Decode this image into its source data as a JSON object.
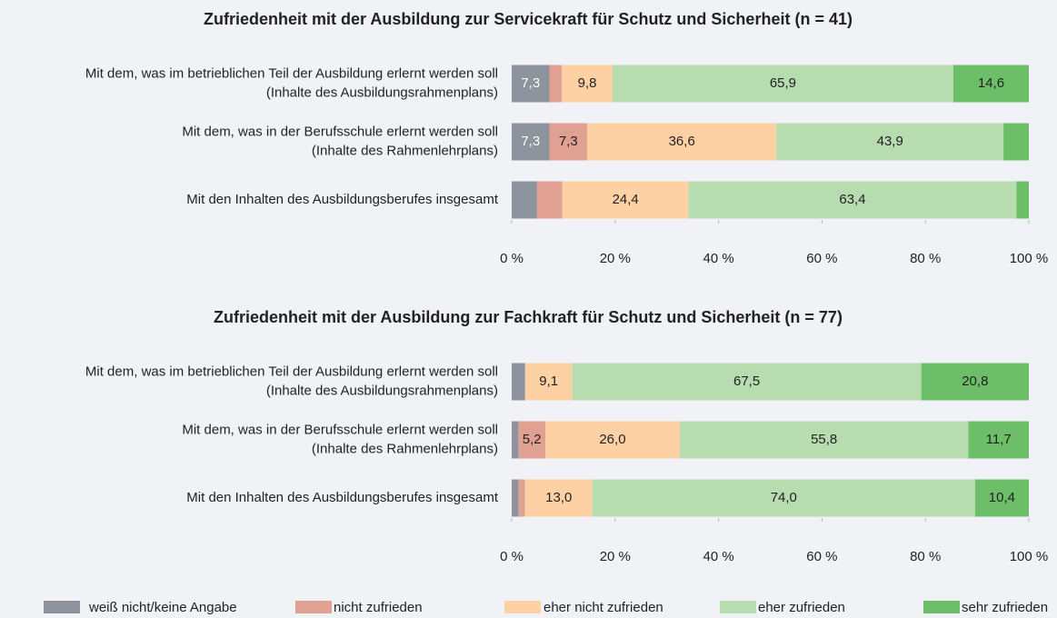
{
  "chart_data": [
    {
      "type": "stacked-bar-horizontal",
      "title": "Zufriedenheit mit der Ausbildung zur Servicekraft für Schutz und Sicherheit (n = 41)",
      "categories": [
        [
          "Mit dem, was im betrieblichen Teil der Ausbildung erlernt werden soll",
          "(Inhalte des Ausbildungsrahmenplans)"
        ],
        [
          "Mit dem, was in der Berufsschule erlernt werden soll",
          "(Inhalte des Rahmenlehrplans)"
        ],
        [
          "Mit den Inhalten des Ausbildungsberufes insgesamt"
        ]
      ],
      "series": [
        {
          "name": "weiß nicht/keine Angabe",
          "color": "#8d949d",
          "values": [
            7.3,
            7.3,
            4.9
          ],
          "value_labels": [
            "7,3",
            "7,3",
            null
          ]
        },
        {
          "name": "nicht zufrieden",
          "color": "#e0a192",
          "values": [
            2.4,
            7.3,
            4.9
          ],
          "value_labels": [
            null,
            "7,3",
            null
          ]
        },
        {
          "name": "eher nicht zufrieden",
          "color": "#fdd1a4",
          "values": [
            9.8,
            36.6,
            24.4
          ],
          "value_labels": [
            "9,8",
            "36,6",
            "24,4"
          ]
        },
        {
          "name": "eher zufrieden",
          "color": "#b6dcaf",
          "values": [
            65.9,
            43.9,
            63.4
          ],
          "value_labels": [
            "65,9",
            "43,9",
            "63,4"
          ]
        },
        {
          "name": "sehr zufrieden",
          "color": "#6cbf68",
          "values": [
            14.6,
            4.9,
            2.4
          ],
          "value_labels": [
            "14,6",
            null,
            null
          ]
        }
      ],
      "xlim": [
        0,
        100
      ],
      "xticks": [
        {
          "value": 0,
          "label": "0 %"
        },
        {
          "value": 20,
          "label": "20 %"
        },
        {
          "value": 40,
          "label": "40 %"
        },
        {
          "value": 60,
          "label": "60 %"
        },
        {
          "value": 80,
          "label": "80 %"
        },
        {
          "value": 100,
          "label": "100 %"
        }
      ],
      "grid": false
    },
    {
      "type": "stacked-bar-horizontal",
      "title": "Zufriedenheit mit der Ausbildung zur Fachkraft für Schutz und Sicherheit (n = 77)",
      "categories": [
        [
          "Mit dem, was im betrieblichen Teil der Ausbildung erlernt werden soll",
          "(Inhalte des Ausbildungsrahmenplans)"
        ],
        [
          "Mit dem, was in der Berufsschule erlernt werden soll",
          "(Inhalte des Rahmenlehrplans)"
        ],
        [
          "Mit den Inhalten des Ausbildungsberufes insgesamt"
        ]
      ],
      "series": [
        {
          "name": "weiß nicht/keine Angabe",
          "color": "#8d949d",
          "values": [
            2.6,
            1.3,
            1.3
          ],
          "value_labels": [
            null,
            null,
            null
          ]
        },
        {
          "name": "nicht zufrieden",
          "color": "#e0a192",
          "values": [
            0,
            5.2,
            1.3
          ],
          "value_labels": [
            null,
            "5,2",
            null
          ]
        },
        {
          "name": "eher nicht zufrieden",
          "color": "#fdd1a4",
          "values": [
            9.1,
            26.0,
            13.0
          ],
          "value_labels": [
            "9,1",
            "26,0",
            "13,0"
          ]
        },
        {
          "name": "eher zufrieden",
          "color": "#b6dcaf",
          "values": [
            67.5,
            55.8,
            74.0
          ],
          "value_labels": [
            "67,5",
            "55,8",
            "74,0"
          ]
        },
        {
          "name": "sehr zufrieden",
          "color": "#6cbf68",
          "values": [
            20.8,
            11.7,
            10.4
          ],
          "value_labels": [
            "20,8",
            "11,7",
            "10,4"
          ]
        }
      ],
      "xlim": [
        0,
        100
      ],
      "xticks": [
        {
          "value": 0,
          "label": "0 %"
        },
        {
          "value": 20,
          "label": "20 %"
        },
        {
          "value": 40,
          "label": "40 %"
        },
        {
          "value": 60,
          "label": "60 %"
        },
        {
          "value": 80,
          "label": "80 %"
        },
        {
          "value": 100,
          "label": "100 %"
        }
      ],
      "grid": false
    }
  ]
}
